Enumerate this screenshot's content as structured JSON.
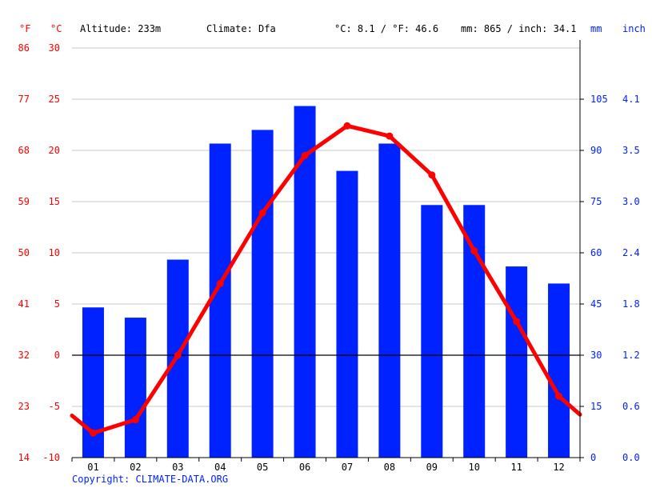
{
  "header": {
    "unit_f": "°F",
    "unit_c": "°C",
    "altitude": "Altitude: 233m",
    "climate": "Climate: Dfa",
    "temp_avg": "°C: 8.1 / °F: 46.6",
    "precip_total": "mm: 865 / inch: 34.1",
    "unit_mm": "mm",
    "unit_inch": "inch"
  },
  "copyright": "Copyright: CLIMATE-DATA.ORG",
  "colors": {
    "temperature": "#ff0000",
    "precipitation": "#0022ff",
    "grid": "#c8c8c8",
    "zero_line": "#000000"
  },
  "chart_data": {
    "type": "bar+line",
    "categories": [
      "01",
      "02",
      "03",
      "04",
      "05",
      "06",
      "07",
      "08",
      "09",
      "10",
      "11",
      "12"
    ],
    "series": [
      {
        "type": "bar",
        "axis": "right",
        "unit": "mm",
        "values": [
          44,
          41,
          58,
          92,
          96,
          103,
          84,
          92,
          74,
          74,
          56,
          51
        ]
      },
      {
        "type": "line",
        "axis": "left",
        "unit": "°C",
        "values": [
          -7.6,
          -6.3,
          0.0,
          7.0,
          13.9,
          19.5,
          22.4,
          21.4,
          17.6,
          10.2,
          3.3,
          -4.0
        ],
        "edge_start": -5.9,
        "edge_end": -5.8
      }
    ],
    "y_left": {
      "ticks_c": [
        -10,
        -5,
        0,
        5,
        10,
        15,
        20,
        25,
        30
      ],
      "ticks_f": [
        14,
        23,
        32,
        41,
        50,
        59,
        68,
        77,
        86
      ],
      "range": [
        -10,
        30
      ]
    },
    "y_right": {
      "ticks_mm": [
        0,
        15,
        30,
        45,
        60,
        75,
        90,
        105
      ],
      "ticks_inch": [
        "0.0",
        "0.6",
        "1.2",
        "1.8",
        "2.4",
        "3.0",
        "3.5",
        "4.1"
      ],
      "range": [
        0,
        120
      ]
    },
    "grid": true
  }
}
